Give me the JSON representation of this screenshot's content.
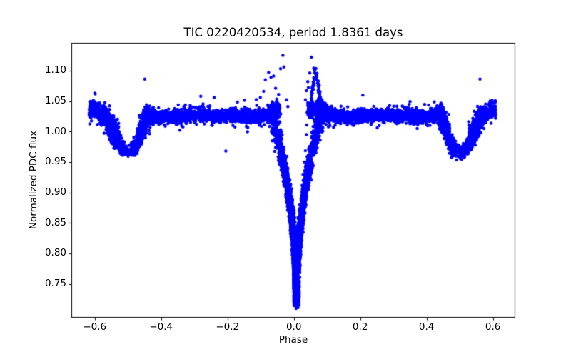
{
  "chart_data": {
    "type": "scatter",
    "title": "TIC 0220420534, period 1.8361 days",
    "xlabel": "Phase",
    "ylabel": "Normalized PDC flux",
    "marker_color": "#0000ff",
    "marker_radius_px": 2.2,
    "grid": false,
    "legend": "none",
    "xlim": [
      -0.6704,
      0.6674
    ],
    "ylim": [
      0.6945,
      1.1455
    ],
    "xticks": [
      -0.6,
      -0.4,
      -0.2,
      0.0,
      0.2,
      0.4,
      0.6
    ],
    "yticks": [
      0.75,
      0.8,
      0.85,
      0.9,
      0.95,
      1.0,
      1.05,
      1.1
    ],
    "phase_coverage": [
      -0.617,
      0.609
    ],
    "baseline": {
      "flux": 1.0255,
      "sigma": 0.0052
    },
    "primary_eclipse": {
      "center_phase": 0.008,
      "min_flux": 0.715,
      "depth": 0.31,
      "half_width": 0.075
    },
    "secondary_eclipses": [
      {
        "center_phase": -0.5,
        "min_flux": 0.963,
        "depth": 0.062,
        "half_width": 0.062
      },
      {
        "center_phase": 0.5,
        "min_flux": 0.963,
        "depth": 0.062,
        "half_width": 0.062
      }
    ],
    "shoulder_bumps": [
      {
        "center_phase": -0.447,
        "half_width": 0.028,
        "amplitude": 0.013
      },
      {
        "center_phase": 0.447,
        "half_width": 0.028,
        "amplitude": 0.013
      },
      {
        "center_phase": -0.605,
        "half_width": 0.025,
        "amplitude": 0.012
      },
      {
        "center_phase": 0.6,
        "half_width": 0.022,
        "amplitude": 0.012
      }
    ],
    "primary_shoulders": [
      {
        "range": [
          -0.105,
          -0.042
        ],
        "peak_phase": -0.052,
        "peak_rise": 0.024
      },
      {
        "range": [
          0.045,
          0.145
        ],
        "peak_phase": 0.075,
        "peak_rise": 0.026
      }
    ],
    "egress_streak": {
      "range": [
        0.042,
        0.098
      ],
      "peak_phase": 0.066,
      "peak_flux": 1.093,
      "base_flux": 1.032
    },
    "high_points": [
      [
        -0.033,
        1.125
      ],
      [
        0.053,
        1.122
      ],
      [
        -0.03,
        1.106
      ],
      [
        0.06,
        1.104
      ],
      [
        -0.04,
        1.103
      ],
      [
        -0.076,
        1.097
      ],
      [
        0.048,
        1.096
      ],
      [
        -0.061,
        1.091
      ],
      [
        -0.069,
        1.089
      ],
      [
        -0.086,
        1.085
      ],
      [
        0.042,
        1.082
      ],
      [
        -0.055,
        1.071
      ],
      [
        0.038,
        1.067
      ],
      [
        -0.091,
        1.066
      ],
      [
        -0.046,
        1.061
      ],
      [
        -0.101,
        1.056
      ],
      [
        0.035,
        1.052
      ],
      [
        -0.022,
        1.052
      ],
      [
        -0.065,
        1.049
      ],
      [
        -0.112,
        1.043
      ],
      [
        -0.018,
        1.041
      ]
    ],
    "outliers": [
      [
        -0.449,
        1.086
      ],
      [
        0.561,
        1.086
      ],
      [
        -0.205,
        0.968
      ]
    ],
    "ingress_trails": [
      {
        "from": [
          -0.042,
          1.028
        ],
        "to": [
          0.008,
          0.79
        ],
        "n": 14
      },
      {
        "from": [
          0.045,
          1.068
        ],
        "to": [
          0.019,
          0.85
        ],
        "n": 12
      }
    ]
  }
}
